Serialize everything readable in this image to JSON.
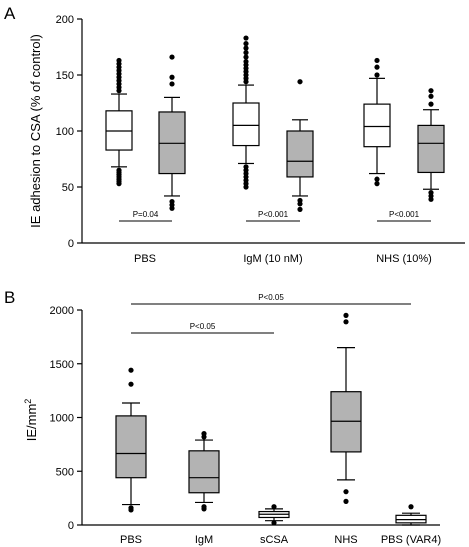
{
  "chart_data": [
    {
      "panel": "A",
      "type": "box",
      "ylabel": "IE adhesion to CSA (% of control)",
      "ylim": [
        0,
        200
      ],
      "yticks": [
        "0",
        "50",
        "100",
        "150",
        "200"
      ],
      "groups": [
        "PBS",
        "IgM (10 nM)",
        "NHS (10%)"
      ],
      "series_fills": [
        "#ffffff",
        "#b3b3b3"
      ],
      "boxes": [
        {
          "group": 0,
          "fill": "#ffffff",
          "q1": 83,
          "median": 100,
          "q3": 118,
          "whisker_low": 68,
          "whisker_high": 133,
          "outliers": [
            53,
            55,
            57,
            59,
            61,
            63,
            65,
            136,
            139,
            142,
            145,
            148,
            151,
            154,
            157,
            160,
            163
          ]
        },
        {
          "group": 0,
          "fill": "#b3b3b3",
          "q1": 62,
          "median": 89,
          "q3": 117,
          "whisker_low": 42,
          "whisker_high": 130,
          "outliers": [
            31,
            34,
            37,
            142,
            148,
            166
          ]
        },
        {
          "group": 1,
          "fill": "#ffffff",
          "q1": 87,
          "median": 105,
          "q3": 125,
          "whisker_low": 71,
          "whisker_high": 141,
          "outliers": [
            50,
            53,
            56,
            59,
            62,
            65,
            68,
            144,
            147,
            150,
            153,
            156,
            159,
            162,
            166,
            170,
            174,
            178,
            183
          ]
        },
        {
          "group": 1,
          "fill": "#b3b3b3",
          "q1": 59,
          "median": 73,
          "q3": 100,
          "whisker_low": 42,
          "whisker_high": 110,
          "outliers": [
            30,
            35,
            38,
            144
          ]
        },
        {
          "group": 2,
          "fill": "#ffffff",
          "q1": 86,
          "median": 104,
          "q3": 124,
          "whisker_low": 62,
          "whisker_high": 147,
          "outliers": [
            53,
            57,
            150,
            157,
            163
          ]
        },
        {
          "group": 2,
          "fill": "#b3b3b3",
          "q1": 63,
          "median": 89,
          "q3": 105,
          "whisker_low": 48,
          "whisker_high": 119,
          "outliers": [
            39,
            42,
            45,
            124,
            131,
            136
          ]
        }
      ],
      "annotations": [
        {
          "label": "P=0.04",
          "group": 0
        },
        {
          "label": "P<0.001",
          "group": 1
        },
        {
          "label": "P<0.001",
          "group": 2
        }
      ]
    },
    {
      "panel": "B",
      "type": "box",
      "ylabel": "IE/mm",
      "ylabel_superscript": "2",
      "ylim": [
        0,
        2000
      ],
      "yticks": [
        "0",
        "500",
        "1000",
        "1500",
        "2000"
      ],
      "categories": [
        "PBS",
        "IgM",
        "sCSA",
        "NHS",
        "PBS (VAR4)"
      ],
      "boxes": [
        {
          "fill": "#b3b3b3",
          "q1": 440,
          "median": 665,
          "q3": 1015,
          "whisker_low": 190,
          "whisker_high": 1135,
          "outliers": [
            140,
            160,
            1310,
            1440
          ]
        },
        {
          "fill": "#b3b3b3",
          "q1": 300,
          "median": 440,
          "q3": 690,
          "whisker_low": 210,
          "whisker_high": 790,
          "outliers": [
            150,
            170,
            820,
            850
          ]
        },
        {
          "fill": "#ffffff",
          "q1": 70,
          "median": 100,
          "q3": 125,
          "whisker_low": 40,
          "whisker_high": 150,
          "outliers": [
            20,
            170
          ]
        },
        {
          "fill": "#b3b3b3",
          "q1": 680,
          "median": 965,
          "q3": 1240,
          "whisker_low": 420,
          "whisker_high": 1650,
          "outliers": [
            220,
            310,
            1890,
            1950
          ]
        },
        {
          "fill": "#ffffff",
          "q1": 20,
          "median": 50,
          "q3": 90,
          "whisker_low": 0,
          "whisker_high": 110,
          "outliers": [
            170
          ]
        }
      ],
      "annotations": [
        {
          "label": "P<0.05",
          "from": 0,
          "to": 4
        },
        {
          "label": "P<0.05",
          "from": 0,
          "to": 2
        }
      ]
    }
  ]
}
